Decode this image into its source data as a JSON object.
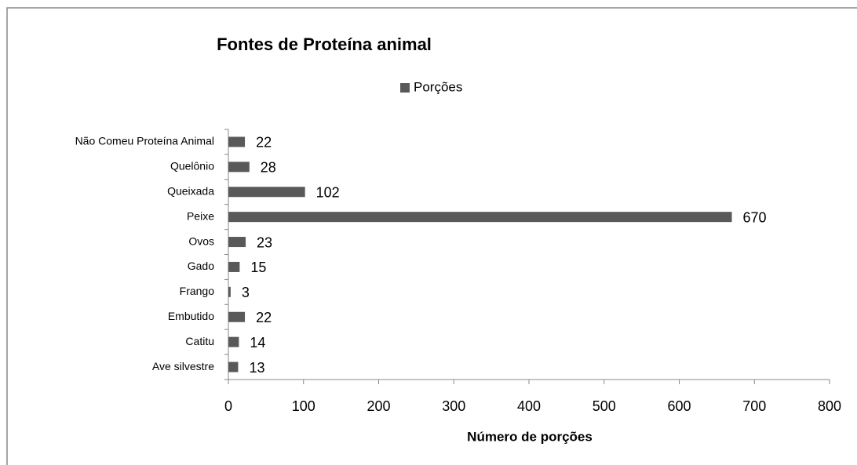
{
  "chart_data": {
    "type": "bar",
    "orientation": "horizontal",
    "title": "Fontes de Proteína animal",
    "categories": [
      "Não Comeu Proteína Animal",
      "Quelônio",
      "Queixada",
      "Peixe",
      "Ovos",
      "Gado",
      "Frango",
      "Embutido",
      "Catitu",
      "Ave silvestre"
    ],
    "series": [
      {
        "name": "Porções",
        "color": "#595959",
        "values": [
          22,
          28,
          102,
          670,
          23,
          15,
          3,
          22,
          14,
          13
        ]
      }
    ],
    "xlabel": "Número de porções",
    "xlim": [
      0,
      800
    ],
    "xticks": [
      0,
      100,
      200,
      300,
      400,
      500,
      600,
      700,
      800
    ],
    "legend": "top",
    "grid": false
  }
}
